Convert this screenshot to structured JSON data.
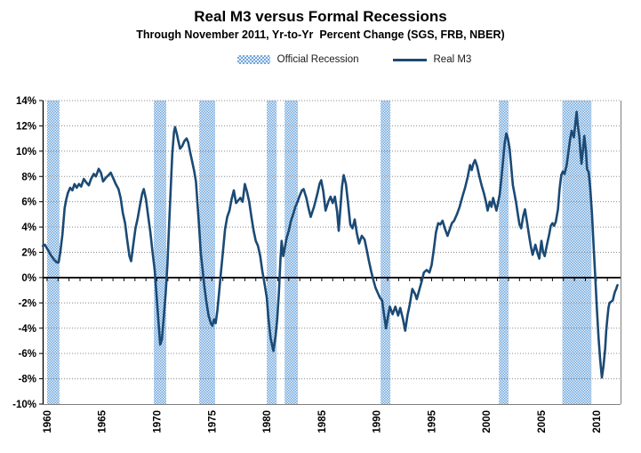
{
  "header": {
    "title": "Real M3 versus Formal Recessions",
    "subtitle": "Through November 2011, Yr-to-Yr  Percent Change (SGS, FRB, NBER)"
  },
  "legend": {
    "recession_label": "Official Recession",
    "m3_label": "Real M3"
  },
  "colors": {
    "line": "#1B4A75",
    "band_blue": "#6FA7DD",
    "band_white": "#E9F1FA",
    "grid": "#8C8C8C",
    "frame": "#7F7F7F",
    "zero_axis": "#000000",
    "label": "#000000"
  },
  "chart_data": {
    "type": "line",
    "title": "Real M3 versus Formal Recessions",
    "subtitle": "Through November 2011, Yr-to-Yr  Percent Change (SGS, FRB, NBER)",
    "xlabel": "",
    "ylabel": "Yr-to-Yr Percent Change",
    "x_domain": [
      1959.6,
      2012.2
    ],
    "ylim": [
      -10,
      14
    ],
    "y_ticks": [
      14,
      12,
      10,
      8,
      6,
      4,
      2,
      0,
      -2,
      -4,
      -6,
      -8,
      -10
    ],
    "y_tick_suffix": "%",
    "x_ticks": [
      1960,
      1965,
      1970,
      1975,
      1980,
      1985,
      1990,
      1995,
      2000,
      2005,
      2010
    ],
    "grid": "dotted horizontal",
    "legend_position": "top",
    "recession_bands": {
      "name": "Official Recession",
      "ranges": [
        [
          1960.0,
          1961.13
        ],
        [
          1969.72,
          1970.85
        ],
        [
          1973.85,
          1975.3
        ],
        [
          1980.0,
          1980.9
        ],
        [
          1981.62,
          1982.83
        ],
        [
          1990.36,
          1991.25
        ],
        [
          2001.13,
          2002.0
        ],
        [
          2006.9,
          2009.55
        ]
      ]
    },
    "series": [
      {
        "name": "Real M3",
        "points": [
          [
            1959.62,
            2.5
          ],
          [
            1959.8,
            2.6
          ],
          [
            1960.0,
            2.3
          ],
          [
            1960.2,
            2.0
          ],
          [
            1960.4,
            1.7
          ],
          [
            1960.65,
            1.4
          ],
          [
            1960.9,
            1.2
          ],
          [
            1961.05,
            1.2
          ],
          [
            1961.2,
            2.0
          ],
          [
            1961.4,
            3.4
          ],
          [
            1961.6,
            5.5
          ],
          [
            1961.75,
            6.2
          ],
          [
            1961.9,
            6.7
          ],
          [
            1962.1,
            7.1
          ],
          [
            1962.3,
            6.9
          ],
          [
            1962.5,
            7.4
          ],
          [
            1962.7,
            7.1
          ],
          [
            1962.9,
            7.4
          ],
          [
            1963.1,
            7.2
          ],
          [
            1963.35,
            7.8
          ],
          [
            1963.6,
            7.5
          ],
          [
            1963.8,
            7.3
          ],
          [
            1964.0,
            7.8
          ],
          [
            1964.25,
            8.2
          ],
          [
            1964.45,
            8.0
          ],
          [
            1964.7,
            8.6
          ],
          [
            1964.9,
            8.3
          ],
          [
            1965.1,
            7.6
          ],
          [
            1965.35,
            7.9
          ],
          [
            1965.6,
            8.1
          ],
          [
            1965.8,
            8.3
          ],
          [
            1966.0,
            7.9
          ],
          [
            1966.25,
            7.4
          ],
          [
            1966.5,
            7.0
          ],
          [
            1966.7,
            6.3
          ],
          [
            1966.9,
            5.1
          ],
          [
            1967.1,
            4.3
          ],
          [
            1967.3,
            2.9
          ],
          [
            1967.5,
            1.7
          ],
          [
            1967.65,
            1.3
          ],
          [
            1967.85,
            2.6
          ],
          [
            1968.05,
            3.9
          ],
          [
            1968.25,
            4.7
          ],
          [
            1968.45,
            5.7
          ],
          [
            1968.65,
            6.6
          ],
          [
            1968.8,
            7.0
          ],
          [
            1969.0,
            6.2
          ],
          [
            1969.2,
            4.9
          ],
          [
            1969.4,
            3.6
          ],
          [
            1969.6,
            2.0
          ],
          [
            1969.8,
            0.6
          ],
          [
            1970.0,
            -1.8
          ],
          [
            1970.15,
            -3.6
          ],
          [
            1970.3,
            -5.3
          ],
          [
            1970.45,
            -4.9
          ],
          [
            1970.6,
            -3.4
          ],
          [
            1970.8,
            -1.2
          ],
          [
            1970.95,
            1.0
          ],
          [
            1971.1,
            4.0
          ],
          [
            1971.25,
            7.0
          ],
          [
            1971.4,
            9.8
          ],
          [
            1971.55,
            11.5
          ],
          [
            1971.65,
            11.9
          ],
          [
            1971.8,
            11.4
          ],
          [
            1971.95,
            10.8
          ],
          [
            1972.1,
            10.2
          ],
          [
            1972.3,
            10.4
          ],
          [
            1972.5,
            10.8
          ],
          [
            1972.7,
            11.0
          ],
          [
            1972.85,
            10.7
          ],
          [
            1973.0,
            10.0
          ],
          [
            1973.2,
            9.2
          ],
          [
            1973.4,
            8.4
          ],
          [
            1973.55,
            7.6
          ],
          [
            1973.7,
            5.8
          ],
          [
            1973.85,
            3.9
          ],
          [
            1974.0,
            1.9
          ],
          [
            1974.15,
            0.7
          ],
          [
            1974.3,
            -0.6
          ],
          [
            1974.5,
            -1.9
          ],
          [
            1974.7,
            -3.0
          ],
          [
            1974.9,
            -3.6
          ],
          [
            1975.05,
            -3.8
          ],
          [
            1975.2,
            -3.3
          ],
          [
            1975.35,
            -3.6
          ],
          [
            1975.5,
            -2.6
          ],
          [
            1975.65,
            -1.3
          ],
          [
            1975.8,
            0.2
          ],
          [
            1976.0,
            2.0
          ],
          [
            1976.2,
            3.8
          ],
          [
            1976.4,
            4.8
          ],
          [
            1976.6,
            5.3
          ],
          [
            1976.8,
            6.2
          ],
          [
            1977.0,
            6.9
          ],
          [
            1977.2,
            5.9
          ],
          [
            1977.4,
            6.1
          ],
          [
            1977.6,
            6.3
          ],
          [
            1977.8,
            6.0
          ],
          [
            1978.0,
            7.4
          ],
          [
            1978.2,
            6.8
          ],
          [
            1978.4,
            6.0
          ],
          [
            1978.6,
            4.8
          ],
          [
            1978.8,
            3.7
          ],
          [
            1979.0,
            2.9
          ],
          [
            1979.2,
            2.5
          ],
          [
            1979.4,
            1.7
          ],
          [
            1979.6,
            0.5
          ],
          [
            1979.8,
            -0.5
          ],
          [
            1980.0,
            -1.6
          ],
          [
            1980.15,
            -3.2
          ],
          [
            1980.35,
            -4.8
          ],
          [
            1980.6,
            -5.8
          ],
          [
            1980.8,
            -4.6
          ],
          [
            1980.95,
            -3.3
          ],
          [
            1981.1,
            -1.2
          ],
          [
            1981.25,
            1.5
          ],
          [
            1981.35,
            2.9
          ],
          [
            1981.5,
            1.7
          ],
          [
            1981.65,
            2.4
          ],
          [
            1981.8,
            3.1
          ],
          [
            1982.0,
            3.7
          ],
          [
            1982.2,
            4.5
          ],
          [
            1982.4,
            5.0
          ],
          [
            1982.6,
            5.6
          ],
          [
            1982.8,
            6.0
          ],
          [
            1983.0,
            6.5
          ],
          [
            1983.2,
            6.9
          ],
          [
            1983.35,
            7.0
          ],
          [
            1983.6,
            6.3
          ],
          [
            1983.8,
            5.5
          ],
          [
            1984.0,
            4.8
          ],
          [
            1984.3,
            5.6
          ],
          [
            1984.6,
            6.6
          ],
          [
            1984.8,
            7.4
          ],
          [
            1984.95,
            7.7
          ],
          [
            1985.15,
            6.8
          ],
          [
            1985.35,
            5.3
          ],
          [
            1985.6,
            6.0
          ],
          [
            1985.8,
            6.4
          ],
          [
            1986.0,
            5.9
          ],
          [
            1986.2,
            6.4
          ],
          [
            1986.4,
            5.2
          ],
          [
            1986.55,
            3.7
          ],
          [
            1986.7,
            5.5
          ],
          [
            1986.85,
            7.2
          ],
          [
            1987.0,
            8.1
          ],
          [
            1987.2,
            7.4
          ],
          [
            1987.4,
            5.9
          ],
          [
            1987.6,
            4.2
          ],
          [
            1987.8,
            3.9
          ],
          [
            1988.0,
            4.6
          ],
          [
            1988.2,
            3.5
          ],
          [
            1988.4,
            2.7
          ],
          [
            1988.65,
            3.3
          ],
          [
            1988.9,
            3.0
          ],
          [
            1989.1,
            2.2
          ],
          [
            1989.3,
            1.3
          ],
          [
            1989.5,
            0.5
          ],
          [
            1989.7,
            -0.2
          ],
          [
            1989.9,
            -0.8
          ],
          [
            1990.1,
            -1.2
          ],
          [
            1990.3,
            -1.6
          ],
          [
            1990.5,
            -1.8
          ],
          [
            1990.65,
            -2.8
          ],
          [
            1990.85,
            -4.0
          ],
          [
            1991.05,
            -3.0
          ],
          [
            1991.2,
            -2.3
          ],
          [
            1991.45,
            -2.9
          ],
          [
            1991.7,
            -2.3
          ],
          [
            1991.95,
            -3.0
          ],
          [
            1992.15,
            -2.4
          ],
          [
            1992.4,
            -3.3
          ],
          [
            1992.6,
            -4.2
          ],
          [
            1992.8,
            -3.0
          ],
          [
            1993.0,
            -2.2
          ],
          [
            1993.25,
            -0.9
          ],
          [
            1993.5,
            -1.3
          ],
          [
            1993.65,
            -1.7
          ],
          [
            1993.9,
            -0.9
          ],
          [
            1994.1,
            -0.3
          ],
          [
            1994.3,
            0.4
          ],
          [
            1994.55,
            0.6
          ],
          [
            1994.8,
            0.4
          ],
          [
            1995.0,
            1.0
          ],
          [
            1995.2,
            2.2
          ],
          [
            1995.4,
            3.6
          ],
          [
            1995.6,
            4.3
          ],
          [
            1995.8,
            4.2
          ],
          [
            1996.0,
            4.5
          ],
          [
            1996.2,
            3.9
          ],
          [
            1996.45,
            3.3
          ],
          [
            1996.65,
            3.8
          ],
          [
            1996.85,
            4.3
          ],
          [
            1997.05,
            4.5
          ],
          [
            1997.3,
            5.0
          ],
          [
            1997.55,
            5.6
          ],
          [
            1997.8,
            6.4
          ],
          [
            1998.05,
            7.1
          ],
          [
            1998.3,
            8.0
          ],
          [
            1998.5,
            8.9
          ],
          [
            1998.65,
            8.5
          ],
          [
            1998.8,
            9.0
          ],
          [
            1998.95,
            9.3
          ],
          [
            1999.15,
            8.8
          ],
          [
            1999.35,
            8.0
          ],
          [
            1999.55,
            7.3
          ],
          [
            1999.75,
            6.7
          ],
          [
            1999.95,
            6.0
          ],
          [
            2000.1,
            5.3
          ],
          [
            2000.3,
            6.0
          ],
          [
            2000.45,
            5.6
          ],
          [
            2000.6,
            6.3
          ],
          [
            2000.75,
            5.8
          ],
          [
            2000.9,
            5.3
          ],
          [
            2001.05,
            5.9
          ],
          [
            2001.2,
            6.6
          ],
          [
            2001.35,
            7.8
          ],
          [
            2001.5,
            9.2
          ],
          [
            2001.65,
            10.6
          ],
          [
            2001.8,
            11.4
          ],
          [
            2001.95,
            11.0
          ],
          [
            2002.1,
            10.2
          ],
          [
            2002.25,
            8.8
          ],
          [
            2002.4,
            7.3
          ],
          [
            2002.55,
            6.6
          ],
          [
            2002.7,
            5.9
          ],
          [
            2002.85,
            5.0
          ],
          [
            2003.0,
            4.2
          ],
          [
            2003.15,
            3.9
          ],
          [
            2003.35,
            4.9
          ],
          [
            2003.5,
            5.4
          ],
          [
            2003.7,
            4.3
          ],
          [
            2003.9,
            3.2
          ],
          [
            2004.05,
            2.4
          ],
          [
            2004.2,
            1.8
          ],
          [
            2004.45,
            2.6
          ],
          [
            2004.65,
            1.9
          ],
          [
            2004.8,
            1.5
          ],
          [
            2005.0,
            2.9
          ],
          [
            2005.15,
            2.0
          ],
          [
            2005.3,
            1.7
          ],
          [
            2005.5,
            2.6
          ],
          [
            2005.7,
            3.4
          ],
          [
            2005.85,
            4.1
          ],
          [
            2006.0,
            4.3
          ],
          [
            2006.15,
            4.1
          ],
          [
            2006.3,
            4.4
          ],
          [
            2006.5,
            5.4
          ],
          [
            2006.65,
            7.0
          ],
          [
            2006.8,
            8.1
          ],
          [
            2006.95,
            8.4
          ],
          [
            2007.1,
            8.2
          ],
          [
            2007.3,
            8.9
          ],
          [
            2007.45,
            9.9
          ],
          [
            2007.6,
            10.9
          ],
          [
            2007.75,
            11.6
          ],
          [
            2007.95,
            11.1
          ],
          [
            2008.1,
            12.3
          ],
          [
            2008.2,
            13.1
          ],
          [
            2008.3,
            12.1
          ],
          [
            2008.45,
            11.1
          ],
          [
            2008.55,
            9.9
          ],
          [
            2008.65,
            9.0
          ],
          [
            2008.8,
            10.3
          ],
          [
            2008.9,
            11.2
          ],
          [
            2009.05,
            10.0
          ],
          [
            2009.15,
            8.6
          ],
          [
            2009.3,
            8.3
          ],
          [
            2009.45,
            7.0
          ],
          [
            2009.6,
            5.0
          ],
          [
            2009.75,
            2.5
          ],
          [
            2009.9,
            0.0
          ],
          [
            2010.05,
            -2.5
          ],
          [
            2010.2,
            -4.8
          ],
          [
            2010.35,
            -6.5
          ],
          [
            2010.5,
            -7.9
          ],
          [
            2010.65,
            -7.0
          ],
          [
            2010.8,
            -5.6
          ],
          [
            2010.9,
            -4.2
          ],
          [
            2011.0,
            -3.2
          ],
          [
            2011.1,
            -2.4
          ],
          [
            2011.2,
            -2.0
          ],
          [
            2011.35,
            -1.9
          ],
          [
            2011.5,
            -1.8
          ],
          [
            2011.6,
            -1.4
          ],
          [
            2011.7,
            -1.1
          ],
          [
            2011.8,
            -0.9
          ],
          [
            2011.92,
            -0.6
          ]
        ]
      }
    ]
  }
}
